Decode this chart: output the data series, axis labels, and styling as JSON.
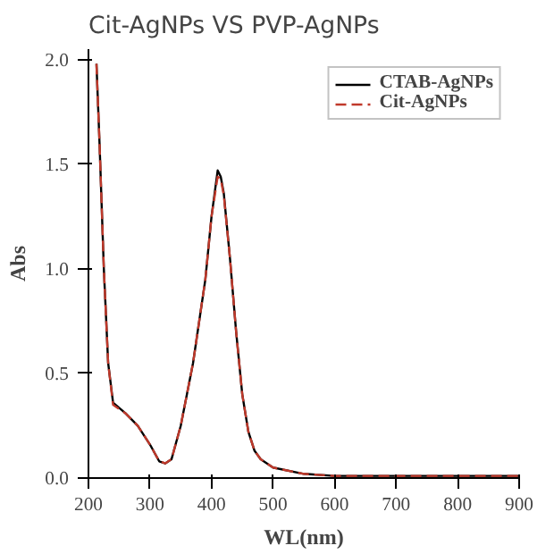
{
  "chart_data": {
    "type": "line",
    "title": "Cit-AgNPs VS PVP-AgNPs",
    "xlabel": "WL(nm)",
    "ylabel": "Abs",
    "xlim": [
      200,
      900
    ],
    "ylim": [
      0,
      2.05
    ],
    "xticks": [
      200,
      300,
      400,
      500,
      600,
      700,
      800,
      900
    ],
    "yticks": [
      {
        "value": 0,
        "label": "0.0"
      },
      0.5,
      {
        "value": 1,
        "label": "1.0"
      },
      1.5,
      {
        "value": 2,
        "label": "2.0"
      }
    ],
    "legend": "top right",
    "grid": false,
    "series": [
      {
        "name": "CTAB-AgNPs",
        "color": "#000000",
        "line_style": "solid",
        "x": [
          213,
          218,
          225,
          232,
          240,
          260,
          280,
          300,
          315,
          325,
          335,
          350,
          370,
          390,
          400,
          410,
          415,
          420,
          430,
          440,
          450,
          460,
          470,
          480,
          500,
          550,
          600,
          700,
          800,
          900
        ],
        "values": [
          1.98,
          1.6,
          1.0,
          0.55,
          0.36,
          0.31,
          0.25,
          0.16,
          0.08,
          0.07,
          0.09,
          0.25,
          0.55,
          0.95,
          1.25,
          1.47,
          1.44,
          1.36,
          1.05,
          0.7,
          0.4,
          0.22,
          0.13,
          0.09,
          0.05,
          0.02,
          0.01,
          0.01,
          0.01,
          0.01
        ]
      },
      {
        "name": "Cit-AgNPs",
        "color": "#c0392b",
        "line_style": "dashed",
        "x": [
          213,
          218,
          225,
          232,
          240,
          260,
          280,
          300,
          315,
          325,
          335,
          350,
          370,
          390,
          400,
          410,
          415,
          420,
          430,
          440,
          450,
          460,
          470,
          480,
          500,
          550,
          600,
          700,
          800,
          900
        ],
        "values": [
          1.98,
          1.6,
          1.0,
          0.55,
          0.35,
          0.31,
          0.25,
          0.16,
          0.08,
          0.07,
          0.09,
          0.25,
          0.55,
          0.95,
          1.25,
          1.44,
          1.43,
          1.35,
          1.05,
          0.7,
          0.4,
          0.22,
          0.13,
          0.09,
          0.05,
          0.02,
          0.01,
          0.01,
          0.01,
          0.01
        ]
      }
    ]
  }
}
